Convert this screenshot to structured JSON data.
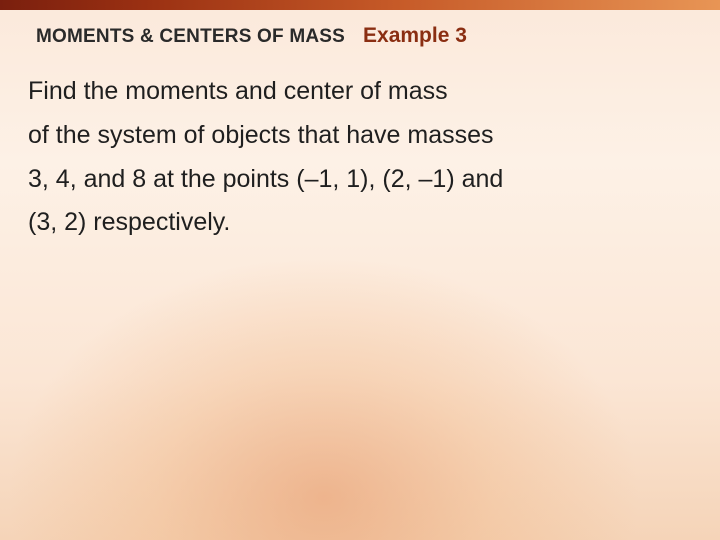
{
  "colors": {
    "top_bar_gradient": [
      "#7a1f0e",
      "#9a3012",
      "#c65a28",
      "#e89555"
    ],
    "background_gradient": [
      "#fbe9db",
      "#fdf1e6",
      "#fbe6d5",
      "#f5d4b8"
    ],
    "glow_center": "rgba(230,150,100,0.55)",
    "section_title": "#2a2a2a",
    "example_label": "#8a2e12",
    "body_text": "#1f1f1f"
  },
  "typography": {
    "section_title_fontsize": 19,
    "example_label_fontsize": 21,
    "body_fontsize": 25,
    "body_line_height": 1.75,
    "font_family": "Arial"
  },
  "header": {
    "section_title": "MOMENTS & CENTERS OF MASS",
    "example_label": "Example 3"
  },
  "body": {
    "line1": "Find the moments and center of mass",
    "line2": "of the system of objects that have masses",
    "line3": "3, 4, and 8 at the points (–1, 1), (2, –1) and",
    "line4": "(3, 2) respectively."
  }
}
